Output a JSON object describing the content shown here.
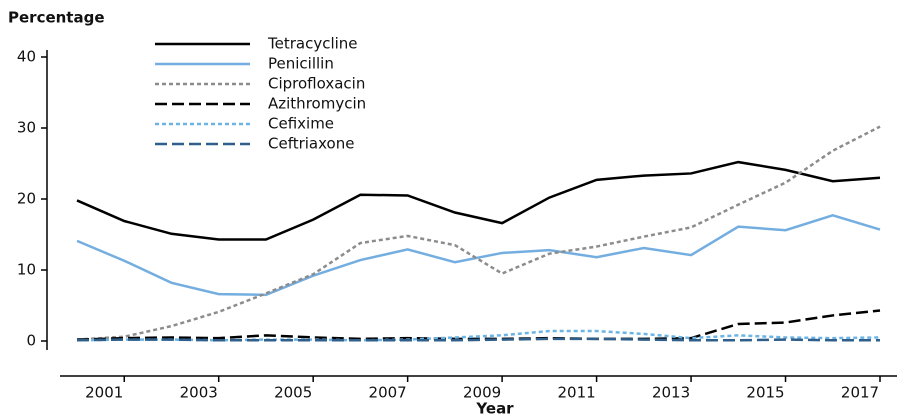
{
  "chart_data": {
    "type": "line",
    "y_label": "Percentage",
    "x_label": "Year",
    "x": [
      2000,
      2001,
      2002,
      2003,
      2004,
      2005,
      2006,
      2007,
      2008,
      2009,
      2010,
      2011,
      2012,
      2013,
      2014,
      2015,
      2016,
      2017
    ],
    "series": [
      {
        "name": "Tetracycline",
        "color": "#000000",
        "dash": "solid",
        "values": [
          19.8,
          16.9,
          15.1,
          14.3,
          14.3,
          17.1,
          20.6,
          20.5,
          18.1,
          16.6,
          20.2,
          22.7,
          23.3,
          23.6,
          25.2,
          24.1,
          22.5,
          23.0
        ]
      },
      {
        "name": "Penicillin",
        "color": "#74aee0",
        "dash": "solid",
        "values": [
          14.1,
          11.3,
          8.2,
          6.6,
          6.5,
          9.2,
          11.4,
          12.9,
          11.1,
          12.4,
          12.8,
          11.8,
          13.1,
          12.1,
          16.1,
          15.6,
          17.7,
          15.7
        ]
      },
      {
        "name": "Ciprofloxacin",
        "color": "#8c8c8c",
        "dash": "dotted",
        "values": [
          0.2,
          0.6,
          2.1,
          4.1,
          6.7,
          9.4,
          13.8,
          14.8,
          13.5,
          9.5,
          12.3,
          13.3,
          14.7,
          16.0,
          19.2,
          22.3,
          26.8,
          30.2
        ]
      },
      {
        "name": "Azithromycin",
        "color": "#000000",
        "dash": "dashed",
        "values": [
          0.2,
          0.4,
          0.5,
          0.4,
          0.8,
          0.5,
          0.3,
          0.4,
          0.3,
          0.3,
          0.4,
          0.3,
          0.3,
          0.4,
          2.4,
          2.6,
          3.6,
          4.3
        ]
      },
      {
        "name": "Cefixime",
        "color": "#6cb4e4",
        "dash": "dotted",
        "values": [
          0.1,
          0.2,
          0.2,
          0.1,
          0.2,
          0.2,
          0.1,
          0.2,
          0.5,
          0.8,
          1.4,
          1.4,
          1.0,
          0.4,
          0.8,
          0.5,
          0.4,
          0.5
        ]
      },
      {
        "name": "Ceftriaxone",
        "color": "#2f5f8a",
        "dash": "dashed",
        "values": [
          0.1,
          0.2,
          0.2,
          0.1,
          0.1,
          0.1,
          0.1,
          0.1,
          0.1,
          0.2,
          0.3,
          0.3,
          0.2,
          0.1,
          0.1,
          0.2,
          0.1,
          0.1
        ]
      }
    ],
    "xlim": [
      2000,
      2017
    ],
    "xticks": [
      2001,
      2003,
      2005,
      2007,
      2009,
      2011,
      2013,
      2015,
      2017
    ],
    "ylim": [
      0,
      40
    ],
    "yticks": [
      0,
      10,
      20,
      30,
      40
    ],
    "grid": false,
    "legend": "upper left"
  }
}
